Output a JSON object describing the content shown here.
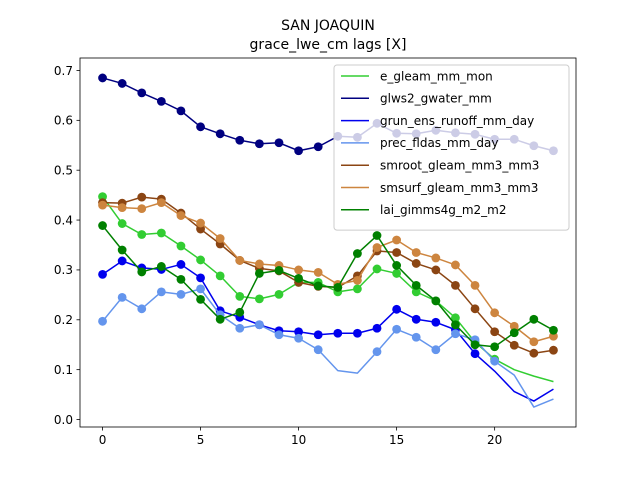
{
  "chart_data": {
    "type": "line",
    "title": "SAN JOAQUIN",
    "subtitle": "grace_lwe_cm lags [X]",
    "xlabel": "",
    "ylabel": "",
    "xlim": [
      -1.15,
      24.15
    ],
    "ylim": [
      -0.015,
      0.725
    ],
    "x_ticks": [
      0,
      5,
      10,
      15,
      20
    ],
    "x_tick_labels": [
      "0",
      "5",
      "10",
      "15",
      "20"
    ],
    "y_ticks": [
      0.0,
      0.1,
      0.2,
      0.3,
      0.4,
      0.5,
      0.6,
      0.7
    ],
    "y_tick_labels": [
      "0.0",
      "0.1",
      "0.2",
      "0.3",
      "0.4",
      "0.5",
      "0.6",
      "0.7"
    ],
    "grid": false,
    "legend_position": "top-right",
    "x": [
      0,
      1,
      2,
      3,
      4,
      5,
      6,
      7,
      8,
      9,
      10,
      11,
      12,
      13,
      14,
      15,
      16,
      17,
      18,
      19,
      20,
      21,
      22,
      23
    ],
    "series": [
      {
        "name": "e_gleam_mm_mon",
        "color": "#32cd32",
        "values": [
          0.447,
          0.393,
          0.371,
          0.374,
          0.348,
          0.32,
          0.288,
          0.247,
          0.242,
          0.251,
          0.275,
          0.275,
          0.256,
          0.262,
          0.302,
          0.293,
          0.256,
          0.238,
          0.204,
          0.155,
          0.121,
          0.1,
          0.087,
          0.076
        ],
        "markers": [
          true,
          true,
          true,
          true,
          true,
          true,
          true,
          true,
          true,
          true,
          true,
          true,
          true,
          true,
          true,
          true,
          true,
          true,
          true,
          true,
          true,
          false,
          false,
          false
        ]
      },
      {
        "name": "glws2_gwater_mm",
        "color": "#000080",
        "values": [
          0.685,
          0.674,
          0.655,
          0.638,
          0.619,
          0.587,
          0.573,
          0.56,
          0.553,
          0.555,
          0.539,
          0.547,
          null,
          null,
          null,
          null,
          null,
          null,
          null,
          null,
          null,
          null,
          null,
          null
        ],
        "markers": [
          true,
          true,
          true,
          true,
          true,
          true,
          true,
          true,
          true,
          true,
          true,
          true,
          false,
          false,
          false,
          false,
          false,
          false,
          false,
          false,
          false,
          false,
          false,
          false
        ]
      },
      {
        "name": "glws2_gwater_mm (behind legend)",
        "color": "#000080",
        "values": [
          null,
          null,
          null,
          null,
          null,
          null,
          null,
          null,
          null,
          null,
          null,
          0.547,
          0.568,
          0.566,
          0.594,
          0.574,
          0.573,
          0.58,
          0.575,
          0.572,
          0.562,
          0.562,
          0.549,
          0.539
        ],
        "markers": [
          false,
          false,
          false,
          false,
          false,
          false,
          false,
          false,
          false,
          false,
          false,
          false,
          true,
          true,
          true,
          true,
          true,
          true,
          true,
          true,
          true,
          true,
          true,
          true
        ],
        "behind_legend": true
      },
      {
        "name": "grun_ens_runoff_mm_day",
        "color": "#0000ee",
        "values": [
          0.291,
          0.318,
          0.304,
          0.301,
          0.311,
          0.284,
          0.218,
          0.205,
          0.19,
          0.178,
          0.176,
          0.17,
          0.173,
          0.173,
          0.183,
          0.221,
          0.201,
          0.195,
          0.18,
          0.132,
          0.097,
          0.056,
          0.037,
          0.061
        ],
        "markers": [
          true,
          true,
          true,
          true,
          true,
          true,
          true,
          true,
          true,
          true,
          true,
          true,
          true,
          true,
          true,
          true,
          true,
          true,
          true,
          true,
          false,
          false,
          false,
          false
        ]
      },
      {
        "name": "prec_fldas_mm_day",
        "color": "#6495ed",
        "values": [
          0.197,
          0.245,
          0.222,
          0.256,
          0.251,
          0.262,
          0.21,
          0.183,
          0.19,
          0.17,
          0.163,
          0.14,
          0.098,
          0.093,
          0.136,
          0.181,
          0.165,
          0.14,
          0.172,
          0.16,
          0.117,
          0.089,
          0.025,
          0.041
        ],
        "markers": [
          true,
          true,
          true,
          true,
          true,
          true,
          true,
          true,
          true,
          true,
          true,
          true,
          false,
          false,
          true,
          true,
          true,
          true,
          true,
          true,
          true,
          false,
          false,
          false
        ]
      },
      {
        "name": "smroot_gleam_mm3_mm3",
        "color": "#8b4513",
        "values": [
          0.435,
          0.434,
          0.446,
          0.442,
          0.414,
          0.382,
          0.352,
          0.319,
          0.303,
          0.298,
          0.275,
          0.267,
          0.265,
          0.288,
          0.338,
          0.335,
          0.313,
          0.3,
          0.269,
          0.222,
          0.176,
          0.149,
          0.133,
          0.139
        ],
        "markers": [
          true,
          true,
          true,
          true,
          true,
          true,
          true,
          true,
          true,
          true,
          true,
          true,
          true,
          true,
          true,
          true,
          true,
          true,
          true,
          true,
          true,
          true,
          true,
          true
        ]
      },
      {
        "name": "smsurf_gleam_mm3_mm3",
        "color": "#cd853f",
        "values": [
          0.43,
          0.425,
          0.423,
          0.435,
          0.409,
          0.394,
          0.363,
          0.319,
          0.312,
          0.309,
          0.3,
          0.295,
          0.271,
          0.279,
          0.345,
          0.36,
          0.335,
          0.324,
          0.31,
          0.269,
          0.214,
          0.187,
          0.156,
          0.167
        ],
        "markers": [
          true,
          true,
          true,
          true,
          true,
          true,
          true,
          true,
          true,
          true,
          true,
          true,
          true,
          true,
          true,
          true,
          true,
          true,
          true,
          true,
          true,
          true,
          true,
          true
        ]
      },
      {
        "name": "lai_gimms4g_m2_m2",
        "color": "#008000",
        "values": [
          0.389,
          0.34,
          0.296,
          0.307,
          0.281,
          0.241,
          0.201,
          0.215,
          0.293,
          0.299,
          0.283,
          0.268,
          0.265,
          0.333,
          0.369,
          0.309,
          0.269,
          0.238,
          0.19,
          0.15,
          0.146,
          0.174,
          0.201,
          0.179
        ],
        "markers": [
          true,
          true,
          true,
          true,
          true,
          true,
          true,
          true,
          true,
          true,
          true,
          true,
          true,
          true,
          true,
          true,
          true,
          true,
          true,
          true,
          true,
          true,
          true,
          true
        ]
      }
    ]
  }
}
